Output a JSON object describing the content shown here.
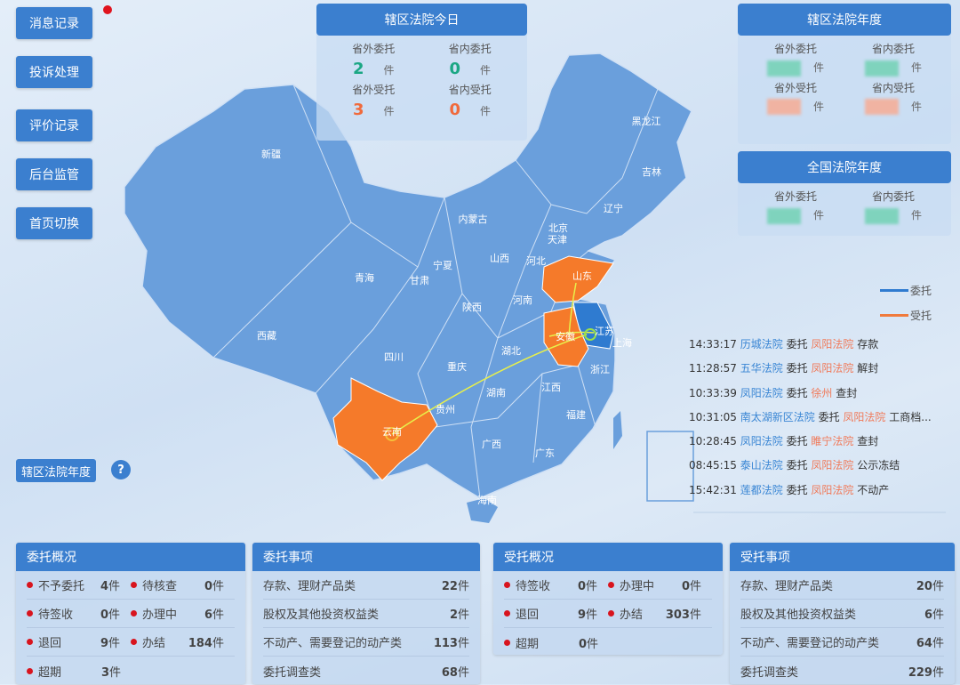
{
  "sidebar": {
    "items": [
      {
        "label": "消息记录",
        "has_notification": true
      },
      {
        "label": "投诉处理"
      },
      {
        "label": "评价记录"
      },
      {
        "label": "后台监管"
      },
      {
        "label": "首页切换"
      }
    ]
  },
  "today": {
    "title": "辖区法院今日",
    "cells": [
      {
        "label": "省外委托",
        "value": "2",
        "unit": "件",
        "color": "#1ba784"
      },
      {
        "label": "省内委托",
        "value": "0",
        "unit": "件",
        "color": "#1ba784"
      },
      {
        "label": "省外受托",
        "value": "3",
        "unit": "件",
        "color": "#f06a3c"
      },
      {
        "label": "省内受托",
        "value": "0",
        "unit": "件",
        "color": "#f06a3c"
      }
    ]
  },
  "annual": {
    "title": "辖区法院年度",
    "cells": [
      {
        "label": "省外委托",
        "unit": "件",
        "color": "#7fd3bd"
      },
      {
        "label": "省内委托",
        "unit": "件",
        "color": "#7fd3bd"
      },
      {
        "label": "省外受托",
        "unit": "件",
        "color": "#f0b3a2"
      },
      {
        "label": "省内受托",
        "unit": "件",
        "color": "#f0b3a2"
      }
    ]
  },
  "national": {
    "title": "全国法院年度",
    "cells": [
      {
        "label": "省外委托",
        "unit": "件",
        "color": "#7fd3bd"
      },
      {
        "label": "省内委托",
        "unit": "件",
        "color": "#7fd3bd"
      }
    ]
  },
  "legend": {
    "entrust": {
      "label": "委托",
      "color": "#2f7bd0"
    },
    "accept": {
      "label": "受托",
      "color": "#f07a3c"
    }
  },
  "map": {
    "provinces": [
      "新疆",
      "西藏",
      "青海",
      "甘肃",
      "宁夏",
      "内蒙古",
      "黑龙江",
      "吉林",
      "辽宁",
      "北京",
      "天津",
      "河北",
      "山西",
      "山东",
      "河南",
      "陕西",
      "四川",
      "重庆",
      "湖北",
      "安徽",
      "江苏",
      "上海",
      "浙江",
      "江西",
      "湖南",
      "贵州",
      "云南",
      "广西",
      "广东",
      "福建",
      "海南"
    ],
    "highlight_accept": [
      "山东",
      "安徽",
      "云南"
    ],
    "highlight_entrust": [
      "江苏"
    ],
    "base_color": "#6a9fdc",
    "accept_color": "#f57a2a",
    "entrust_color": "#2f7bd0"
  },
  "feed": [
    {
      "time": "14:33:17",
      "from": "历城法院",
      "action": "委托",
      "to": "凤阳法院",
      "matter": "存款"
    },
    {
      "time": "11:28:57",
      "from": "五华法院",
      "action": "委托",
      "to": "凤阳法院",
      "matter": "解封"
    },
    {
      "time": "10:33:39",
      "from": "凤阳法院",
      "action": "委托",
      "to": "徐州",
      "matter": "查封"
    },
    {
      "time": "10:31:05",
      "from": "南太湖新区法院",
      "action": "委托",
      "to": "凤阳法院",
      "matter": "工商档..."
    },
    {
      "time": "10:28:45",
      "from": "凤阳法院",
      "action": "委托",
      "to": "睢宁法院",
      "matter": "查封"
    },
    {
      "time": "08:45:15",
      "from": "泰山法院",
      "action": "委托",
      "to": "凤阳法院",
      "matter": "公示冻结"
    },
    {
      "time": "15:42:31",
      "from": "莲都法院",
      "action": "委托",
      "to": "凤阳法院",
      "matter": "不动产"
    }
  ],
  "year_button": "辖区法院年度",
  "help_icon": "?",
  "entrust_overview": {
    "title": "委托概况",
    "rows": [
      [
        {
          "label": "不予委托",
          "value": "4",
          "unit": "件"
        },
        {
          "label": "待核查",
          "value": "0",
          "unit": "件"
        }
      ],
      [
        {
          "label": "待签收",
          "value": "0",
          "unit": "件"
        },
        {
          "label": "办理中",
          "value": "6",
          "unit": "件"
        }
      ],
      [
        {
          "label": "退回",
          "value": "9",
          "unit": "件"
        },
        {
          "label": "办结",
          "value": "184",
          "unit": "件"
        }
      ],
      [
        {
          "label": "超期",
          "value": "3",
          "unit": "件"
        }
      ]
    ]
  },
  "entrust_items": {
    "title": "委托事项",
    "rows": [
      {
        "label": "存款、理财产品类",
        "value": "22",
        "unit": "件"
      },
      {
        "label": "股权及其他投资权益类",
        "value": "2",
        "unit": "件"
      },
      {
        "label": "不动产、需要登记的动产类",
        "value": "113",
        "unit": "件"
      },
      {
        "label": "委托调查类",
        "value": "68",
        "unit": "件"
      }
    ]
  },
  "accept_overview": {
    "title": "受托概况",
    "rows": [
      [
        {
          "label": "待签收",
          "value": "0",
          "unit": "件"
        },
        {
          "label": "办理中",
          "value": "0",
          "unit": "件"
        }
      ],
      [
        {
          "label": "退回",
          "value": "9",
          "unit": "件"
        },
        {
          "label": "办结",
          "value": "303",
          "unit": "件"
        }
      ],
      [
        {
          "label": "超期",
          "value": "0",
          "unit": "件"
        }
      ]
    ]
  },
  "accept_items": {
    "title": "受托事项",
    "rows": [
      {
        "label": "存款、理财产品类",
        "value": "20",
        "unit": "件"
      },
      {
        "label": "股权及其他投资权益类",
        "value": "6",
        "unit": "件"
      },
      {
        "label": "不动产、需要登记的动产类",
        "value": "64",
        "unit": "件"
      },
      {
        "label": "委托调查类",
        "value": "229",
        "unit": "件"
      }
    ]
  }
}
